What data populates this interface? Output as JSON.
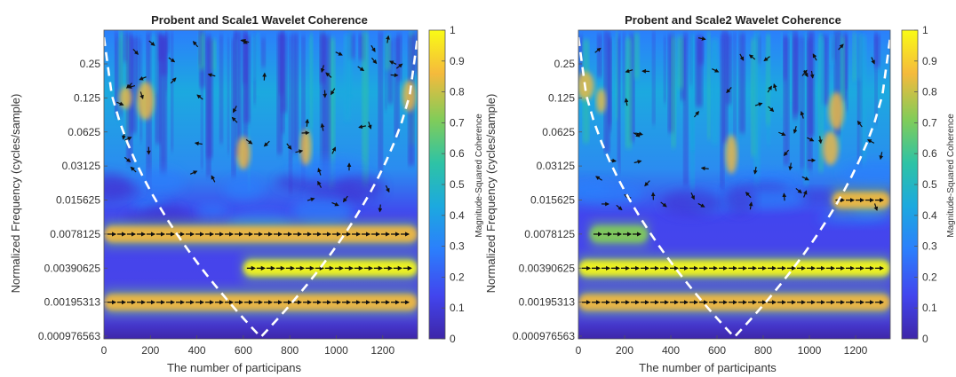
{
  "chart_data": [
    {
      "type": "heatmap",
      "title": "Probent and Scale1 Wavelet Coherence",
      "xlabel": "The number of participans",
      "ylabel": "Normalized Frequency  (cycles/sample)",
      "colorbar_label": "Magnitude-Squared Coherence",
      "xlim": [
        0,
        1350
      ],
      "x_ticks": [
        "0",
        "200",
        "400",
        "600",
        "800",
        "1000",
        "1200"
      ],
      "y_scale": "log2",
      "y_ticks": [
        "0.25",
        "0.125",
        "0.0625",
        "0.03125",
        "0.015625",
        "0.0078125",
        "0.00390625",
        "0.00195313",
        "0.000976563"
      ],
      "clim": [
        0,
        1
      ],
      "colorbar_ticks": [
        "0",
        "0.1",
        "0.2",
        "0.3",
        "0.4",
        "0.5",
        "0.6",
        "0.7",
        "0.8",
        "0.9",
        "1"
      ],
      "colormap": [
        "#3e26a8",
        "#4245ee",
        "#2b7ffc",
        "#1ca9df",
        "#2ec3a5",
        "#81cc59",
        "#f5ba3c",
        "#f9fb15"
      ],
      "high_coherence_bands": [
        {
          "freq": 0.0078,
          "x_range": [
            0,
            1350
          ],
          "level": 0.9
        },
        {
          "freq": 0.0039,
          "x_range": [
            600,
            1350
          ],
          "level": 0.95
        },
        {
          "freq": 0.00195,
          "x_range": [
            0,
            1350
          ],
          "level": 0.85
        }
      ]
    },
    {
      "type": "heatmap",
      "title": "Probent and Scale2 Wavelet Coherence",
      "xlabel": "The number of participants",
      "ylabel": "Normalized Frequency  (cycles/sample)",
      "colorbar_label": "Magnitude-Squared Coherence",
      "xlim": [
        0,
        1350
      ],
      "x_ticks": [
        "0",
        "200",
        "400",
        "600",
        "800",
        "1000",
        "1200"
      ],
      "y_scale": "log2",
      "y_ticks": [
        "0.25",
        "0.125",
        "0.0625",
        "0.03125",
        "0.015625",
        "0.0078125",
        "0.00390625",
        "0.00195313",
        "0.000976563"
      ],
      "clim": [
        0,
        1
      ],
      "colorbar_ticks": [
        "0",
        "0.1",
        "0.2",
        "0.3",
        "0.4",
        "0.5",
        "0.6",
        "0.7",
        "0.8",
        "0.9",
        "1"
      ],
      "colormap": [
        "#3e26a8",
        "#4245ee",
        "#2b7ffc",
        "#1ca9df",
        "#2ec3a5",
        "#81cc59",
        "#f5ba3c",
        "#f9fb15"
      ],
      "high_coherence_bands": [
        {
          "freq": 0.0039,
          "x_range": [
            0,
            1350
          ],
          "level": 0.95
        },
        {
          "freq": 0.00195,
          "x_range": [
            0,
            1350
          ],
          "level": 0.9
        },
        {
          "freq": 0.0078,
          "x_range": [
            50,
            300
          ],
          "level": 0.75
        },
        {
          "freq": 0.0156,
          "x_range": [
            1100,
            1350
          ],
          "level": 0.85
        }
      ]
    }
  ]
}
